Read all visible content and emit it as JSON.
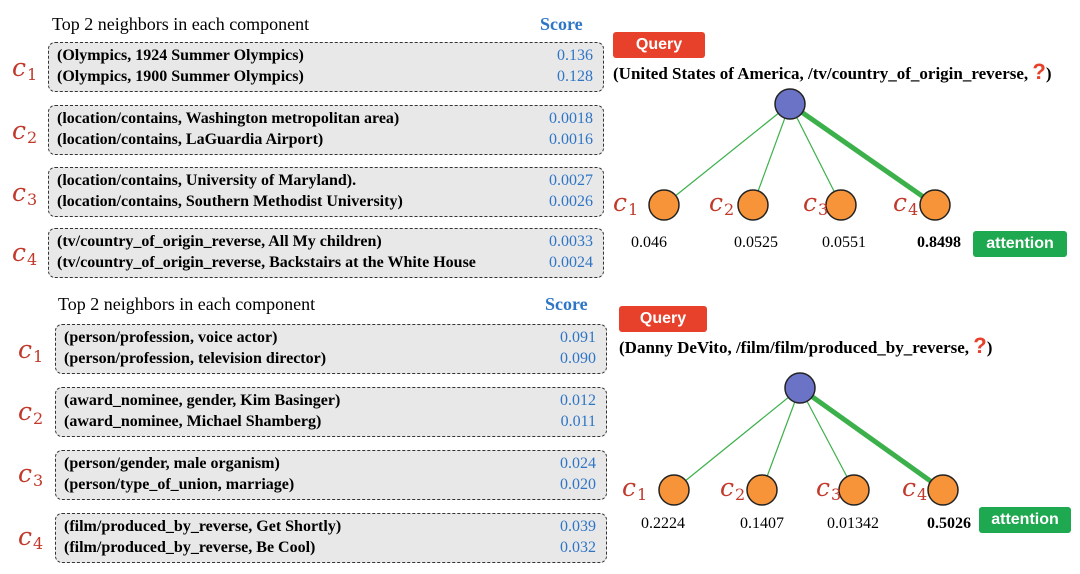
{
  "panels": [
    {
      "heading": "Top 2 neighbors in each component",
      "score_label": "Score",
      "components": [
        {
          "label": "c",
          "sub": "1",
          "rows": [
            {
              "text": "(Olympics, 1924 Summer Olympics)",
              "score": "0.136"
            },
            {
              "text": "(Olympics, 1900 Summer Olympics)",
              "score": "0.128"
            }
          ]
        },
        {
          "label": "c",
          "sub": "2",
          "rows": [
            {
              "text": "(location/contains, Washington metropolitan area)",
              "score": "0.0018"
            },
            {
              "text": "(location/contains, LaGuardia Airport)",
              "score": "0.0016"
            }
          ]
        },
        {
          "label": "c",
          "sub": "3",
          "rows": [
            {
              "text": "(location/contains, University of Maryland).",
              "score": "0.0027"
            },
            {
              "text": "(location/contains, Southern Methodist University)",
              "score": "0.0026"
            }
          ]
        },
        {
          "label": "c",
          "sub": "4",
          "rows": [
            {
              "text": "(tv/country_of_origin_reverse, All My children)",
              "score": "0.0033"
            },
            {
              "text": "(tv/country_of_origin_reverse, Backstairs at the White House",
              "score": "0.0024"
            }
          ]
        }
      ],
      "query_label": "Query",
      "query_text": "(United States of America, /tv/country_of_origin_reverse, ",
      "query_mark": "?",
      "query_close": ")",
      "attention_label": "attention",
      "attention": [
        {
          "label": "c",
          "sub": "1",
          "value": "0.046",
          "strong": false
        },
        {
          "label": "c",
          "sub": "2",
          "value": "0.0525",
          "strong": false
        },
        {
          "label": "c",
          "sub": "3",
          "value": "0.0551",
          "strong": false
        },
        {
          "label": "c",
          "sub": "4",
          "value": "0.8498",
          "strong": true
        }
      ],
      "colors": {
        "root": "#6b73c6",
        "leaf": "#f7943a",
        "edge": "#3cb04a"
      }
    },
    {
      "heading": "Top 2 neighbors in each component",
      "score_label": "Score",
      "components": [
        {
          "label": "c",
          "sub": "1",
          "rows": [
            {
              "text": "(person/profession, voice actor)",
              "score": "0.091"
            },
            {
              "text": "(person/profession, television director)",
              "score": "0.090"
            }
          ]
        },
        {
          "label": "c",
          "sub": "2",
          "rows": [
            {
              "text": "(award_nominee, gender, Kim Basinger)",
              "score": "0.012"
            },
            {
              "text": "(award_nominee, Michael Shamberg)",
              "score": "0.011"
            }
          ]
        },
        {
          "label": "c",
          "sub": "3",
          "rows": [
            {
              "text": "(person/gender, male organism)",
              "score": "0.024"
            },
            {
              "text": "(person/type_of_union, marriage)",
              "score": "0.020"
            }
          ]
        },
        {
          "label": "c",
          "sub": "4",
          "rows": [
            {
              "text": "(film/produced_by_reverse, Get Shortly)",
              "score": "0.039"
            },
            {
              "text": "(film/produced_by_reverse, Be Cool)",
              "score": "0.032"
            }
          ]
        }
      ],
      "query_label": "Query",
      "query_text": "(Danny DeVito, /film/film/produced_by_reverse, ",
      "query_mark": "?",
      "query_close": ")",
      "attention_label": "attention",
      "attention": [
        {
          "label": "c",
          "sub": "1",
          "value": "0.2224",
          "strong": false
        },
        {
          "label": "c",
          "sub": "2",
          "value": "0.1407",
          "strong": false
        },
        {
          "label": "c",
          "sub": "3",
          "value": "0.01342",
          "strong": false
        },
        {
          "label": "c",
          "sub": "4",
          "value": "0.5026",
          "strong": true
        }
      ],
      "colors": {
        "root": "#6b73c6",
        "leaf": "#f7943a",
        "edge": "#3cb04a"
      }
    }
  ]
}
